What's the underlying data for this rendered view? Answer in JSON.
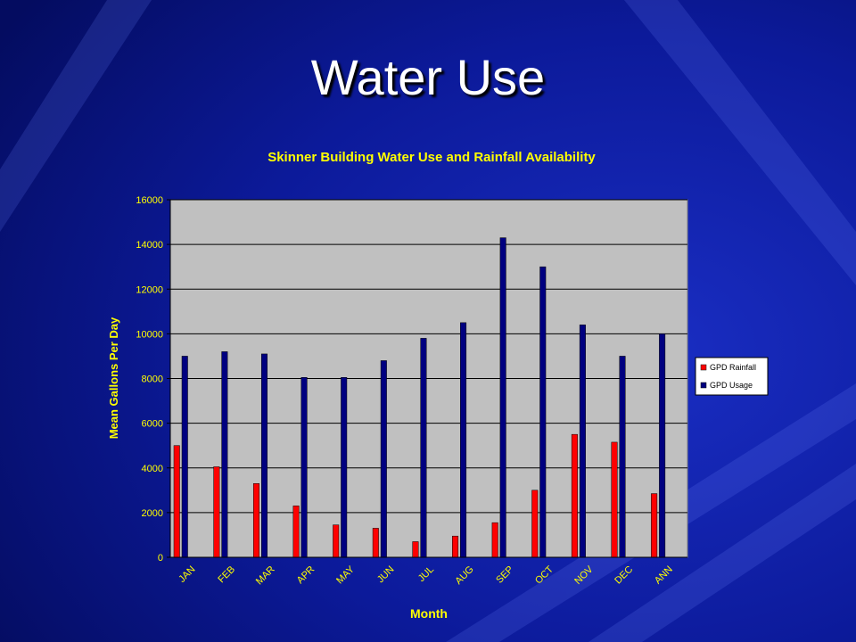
{
  "slide": {
    "title": "Water Use",
    "background_color": "#06106e",
    "accent_color": "#2a44d8"
  },
  "chart_data": {
    "type": "bar",
    "title": "Skinner Building Water Use and Rainfall Availability",
    "xlabel": "Month",
    "ylabel": "Mean Gallons Per Day",
    "ylim": [
      0,
      16000
    ],
    "yticks": [
      0,
      2000,
      4000,
      6000,
      8000,
      10000,
      12000,
      14000,
      16000
    ],
    "grid": true,
    "legend": "right",
    "plot_background": "#c0c0c0",
    "label_color": "#ffff00",
    "categories": [
      "JAN",
      "FEB",
      "MAR",
      "APR",
      "MAY",
      "JUN",
      "JUL",
      "AUG",
      "SEP",
      "OCT",
      "NOV",
      "DEC",
      "ANN"
    ],
    "series": [
      {
        "name": "GPD Rainfall",
        "color": "#ff0000",
        "values": [
          5000,
          4050,
          3300,
          2300,
          1450,
          1300,
          700,
          950,
          1550,
          3000,
          5500,
          5150,
          2850
        ]
      },
      {
        "name": "GPD Usage",
        "color": "#000080",
        "values": [
          9000,
          9200,
          9100,
          8050,
          8050,
          8800,
          9800,
          10500,
          14300,
          13000,
          10400,
          9000,
          10000
        ]
      }
    ]
  }
}
